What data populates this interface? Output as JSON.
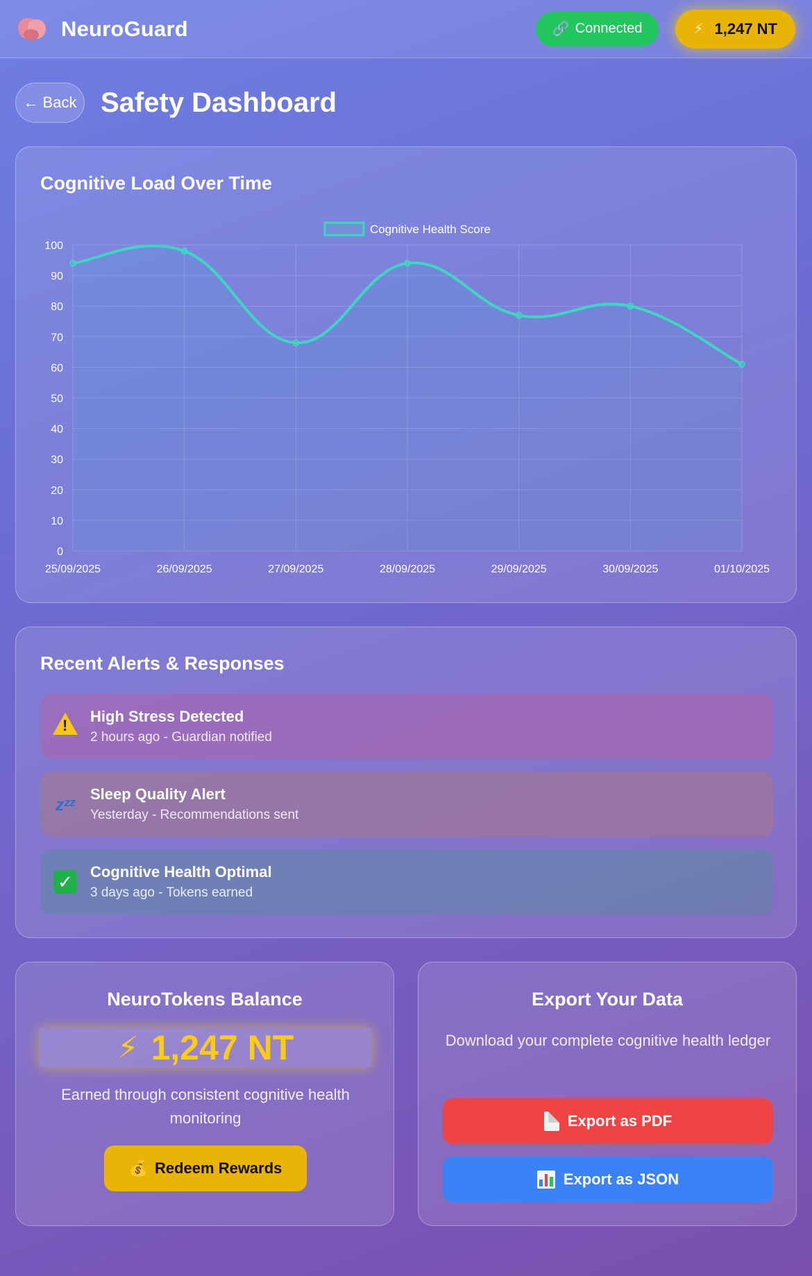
{
  "app": {
    "title": "NeuroGuard",
    "logo_icon": "brain-icon",
    "connection_status": "Connected",
    "connection_icon": "link-icon",
    "token_balance": "1,247 NT",
    "token_icon": "lightning-icon"
  },
  "page": {
    "back_label": "Back",
    "title": "Safety Dashboard"
  },
  "chart_section": {
    "title": "Cognitive Load Over Time"
  },
  "chart_data": {
    "type": "line",
    "x": [
      "25/09/2025",
      "26/09/2025",
      "27/09/2025",
      "28/09/2025",
      "29/09/2025",
      "30/09/2025",
      "01/10/2025"
    ],
    "series": [
      {
        "name": "Cognitive Health Score",
        "values": [
          94,
          98,
          68,
          94,
          77,
          80,
          61
        ]
      }
    ],
    "ylim": [
      0,
      100
    ],
    "yticks": [
      0,
      10,
      20,
      30,
      40,
      50,
      60,
      70,
      80,
      90,
      100
    ],
    "legend": "top-center",
    "grid": true,
    "fill": true,
    "line_color": "#3dd6c0"
  },
  "alerts": {
    "title": "Recent Alerts & Responses",
    "items": [
      {
        "icon": "warning-icon",
        "title": "High Stress Detected",
        "subtitle": "2 hours ago - Guardian notified"
      },
      {
        "icon": "sleep-icon",
        "title": "Sleep Quality Alert",
        "subtitle": "Yesterday - Recommendations sent"
      },
      {
        "icon": "check-icon",
        "title": "Cognitive Health Optimal",
        "subtitle": "3 days ago - Tokens earned"
      }
    ]
  },
  "tokens": {
    "title": "NeuroTokens Balance",
    "balance": "1,247 NT",
    "description": "Earned through consistent cognitive health monitoring",
    "redeem_label": "Redeem Rewards",
    "redeem_icon": "money-bag-icon"
  },
  "export": {
    "title": "Export Your Data",
    "description": "Download your complete cognitive health ledger",
    "pdf_label": "Export as PDF",
    "json_label": "Export as JSON"
  },
  "colors": {
    "connected": "#22c55e",
    "token": "#eab308",
    "pdf": "#ef4444",
    "json": "#3b82f6"
  }
}
